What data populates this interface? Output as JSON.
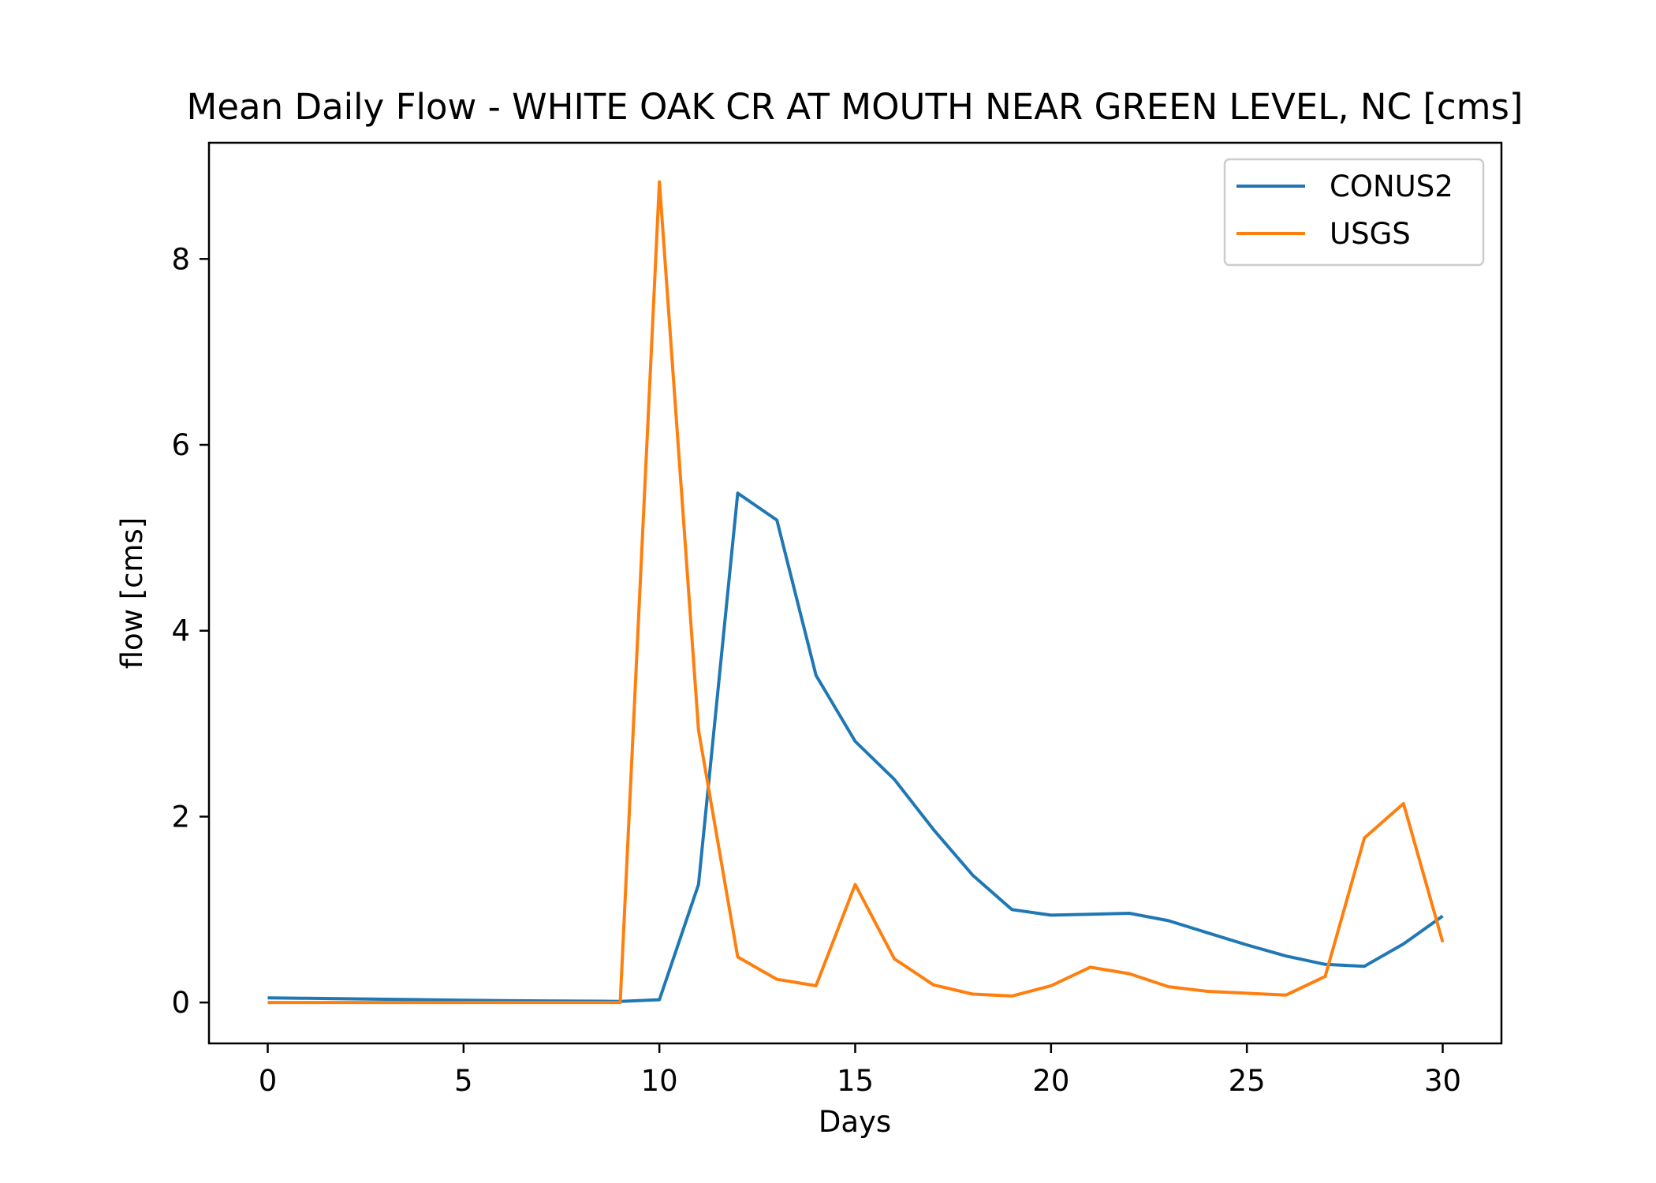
{
  "chart_data": {
    "type": "line",
    "title": "Mean Daily Flow - WHITE OAK CR AT MOUTH NEAR GREEN LEVEL, NC [cms]",
    "xlabel": "Days",
    "ylabel": "flow [cms]",
    "xlim": [
      -1.5,
      31.5
    ],
    "ylim": [
      -0.44,
      9.25
    ],
    "xticks": [
      0,
      5,
      10,
      15,
      20,
      25,
      30
    ],
    "yticks": [
      0,
      2,
      4,
      6,
      8
    ],
    "grid": false,
    "legend": "top-right",
    "x": [
      0,
      1,
      2,
      3,
      4,
      5,
      6,
      7,
      8,
      9,
      10,
      11,
      12,
      13,
      14,
      15,
      16,
      17,
      18,
      19,
      20,
      21,
      22,
      23,
      24,
      25,
      26,
      27,
      28,
      29,
      30
    ],
    "series": [
      {
        "name": "CONUS2",
        "color": "#1f77b4",
        "values": [
          0.05,
          0.045,
          0.04,
          0.035,
          0.03,
          0.025,
          0.02,
          0.017,
          0.015,
          0.012,
          0.03,
          1.27,
          5.48,
          5.19,
          3.52,
          2.81,
          2.4,
          1.86,
          1.37,
          1.0,
          0.94,
          0.95,
          0.96,
          0.88,
          0.75,
          0.62,
          0.5,
          0.41,
          0.39,
          0.63,
          0.93
        ]
      },
      {
        "name": "USGS",
        "color": "#ff7f0e",
        "values": [
          0.0,
          0.0,
          0.0,
          0.0,
          0.0,
          0.0,
          0.0,
          0.0,
          0.0,
          0.0,
          8.83,
          2.93,
          0.49,
          0.25,
          0.18,
          1.27,
          0.47,
          0.19,
          0.09,
          0.07,
          0.18,
          0.38,
          0.31,
          0.17,
          0.12,
          0.1,
          0.08,
          0.28,
          1.77,
          2.14,
          0.65
        ]
      }
    ]
  }
}
